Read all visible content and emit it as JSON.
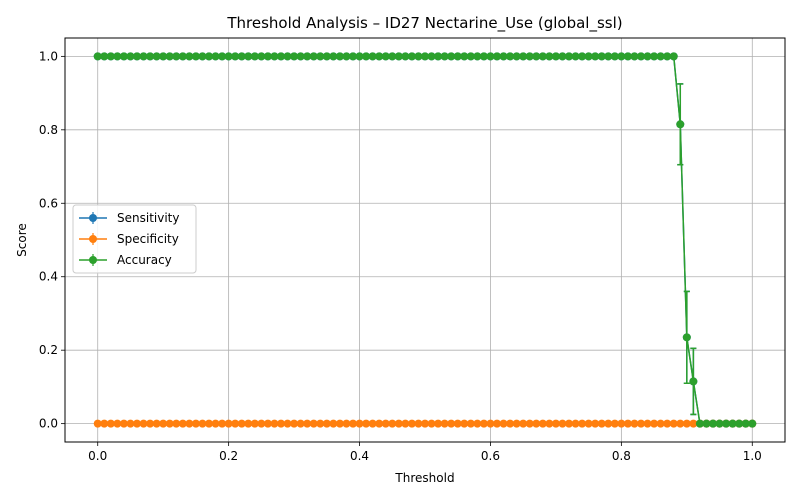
{
  "chart_data": {
    "type": "line",
    "title": "Threshold Analysis – ID27 Nectarine_Use (global_ssl)",
    "xlabel": "Threshold",
    "ylabel": "Score",
    "xlim": [
      -0.05,
      1.05
    ],
    "ylim": [
      -0.05,
      1.05
    ],
    "xticks": [
      0.0,
      0.2,
      0.4,
      0.6,
      0.8,
      1.0
    ],
    "xtick_labels": [
      "0.0",
      "0.2",
      "0.4",
      "0.6",
      "0.8",
      "1.0"
    ],
    "yticks": [
      0.0,
      0.2,
      0.4,
      0.6,
      0.8,
      1.0
    ],
    "ytick_labels": [
      "0.0",
      "0.2",
      "0.4",
      "0.6",
      "0.8",
      "1.0"
    ],
    "grid": true,
    "legend_position": "center-left",
    "x": [
      0.0,
      0.01,
      0.02,
      0.03,
      0.04,
      0.05,
      0.06,
      0.07,
      0.08,
      0.09,
      0.1,
      0.11,
      0.12,
      0.13,
      0.14,
      0.15,
      0.16,
      0.17,
      0.18,
      0.19,
      0.2,
      0.21,
      0.22,
      0.23,
      0.24,
      0.25,
      0.26,
      0.27,
      0.28,
      0.29,
      0.3,
      0.31,
      0.32,
      0.33,
      0.34,
      0.35,
      0.36,
      0.37,
      0.38,
      0.39,
      0.4,
      0.41,
      0.42,
      0.43,
      0.44,
      0.45,
      0.46,
      0.47,
      0.48,
      0.49,
      0.5,
      0.51,
      0.52,
      0.53,
      0.54,
      0.55,
      0.56,
      0.57,
      0.58,
      0.59,
      0.6,
      0.61,
      0.62,
      0.63,
      0.64,
      0.65,
      0.66,
      0.67,
      0.68,
      0.69,
      0.7,
      0.71,
      0.72,
      0.73,
      0.74,
      0.75,
      0.76,
      0.77,
      0.78,
      0.79,
      0.8,
      0.81,
      0.82,
      0.83,
      0.84,
      0.85,
      0.86,
      0.87,
      0.88,
      0.89,
      0.9,
      0.91,
      0.92,
      0.93,
      0.94,
      0.95,
      0.96,
      0.97,
      0.98,
      0.99,
      1.0
    ],
    "series": [
      {
        "name": "Sensitivity",
        "color": "#1f77b4",
        "values": [
          1,
          1,
          1,
          1,
          1,
          1,
          1,
          1,
          1,
          1,
          1,
          1,
          1,
          1,
          1,
          1,
          1,
          1,
          1,
          1,
          1,
          1,
          1,
          1,
          1,
          1,
          1,
          1,
          1,
          1,
          1,
          1,
          1,
          1,
          1,
          1,
          1,
          1,
          1,
          1,
          1,
          1,
          1,
          1,
          1,
          1,
          1,
          1,
          1,
          1,
          1,
          1,
          1,
          1,
          1,
          1,
          1,
          1,
          1,
          1,
          1,
          1,
          1,
          1,
          1,
          1,
          1,
          1,
          1,
          1,
          1,
          1,
          1,
          1,
          1,
          1,
          1,
          1,
          1,
          1,
          1,
          1,
          1,
          1,
          1,
          1,
          1,
          1,
          1,
          0.815,
          0.235,
          0.115,
          0,
          0,
          0,
          0,
          0,
          0,
          0,
          0,
          0
        ],
        "errors": [
          0,
          0,
          0,
          0,
          0,
          0,
          0,
          0,
          0,
          0,
          0,
          0,
          0,
          0,
          0,
          0,
          0,
          0,
          0,
          0,
          0,
          0,
          0,
          0,
          0,
          0,
          0,
          0,
          0,
          0,
          0,
          0,
          0,
          0,
          0,
          0,
          0,
          0,
          0,
          0,
          0,
          0,
          0,
          0,
          0,
          0,
          0,
          0,
          0,
          0,
          0,
          0,
          0,
          0,
          0,
          0,
          0,
          0,
          0,
          0,
          0,
          0,
          0,
          0,
          0,
          0,
          0,
          0,
          0,
          0,
          0,
          0,
          0,
          0,
          0,
          0,
          0,
          0,
          0,
          0,
          0,
          0,
          0,
          0,
          0,
          0,
          0,
          0,
          0,
          0.11,
          0.125,
          0.09,
          0,
          0,
          0,
          0,
          0,
          0,
          0,
          0,
          0
        ]
      },
      {
        "name": "Specificity",
        "color": "#ff7f0e",
        "values": [
          0,
          0,
          0,
          0,
          0,
          0,
          0,
          0,
          0,
          0,
          0,
          0,
          0,
          0,
          0,
          0,
          0,
          0,
          0,
          0,
          0,
          0,
          0,
          0,
          0,
          0,
          0,
          0,
          0,
          0,
          0,
          0,
          0,
          0,
          0,
          0,
          0,
          0,
          0,
          0,
          0,
          0,
          0,
          0,
          0,
          0,
          0,
          0,
          0,
          0,
          0,
          0,
          0,
          0,
          0,
          0,
          0,
          0,
          0,
          0,
          0,
          0,
          0,
          0,
          0,
          0,
          0,
          0,
          0,
          0,
          0,
          0,
          0,
          0,
          0,
          0,
          0,
          0,
          0,
          0,
          0,
          0,
          0,
          0,
          0,
          0,
          0,
          0,
          0,
          0,
          0,
          0,
          0,
          0,
          0,
          0,
          0,
          0,
          0,
          0,
          0
        ],
        "errors": [
          0,
          0,
          0,
          0,
          0,
          0,
          0,
          0,
          0,
          0,
          0,
          0,
          0,
          0,
          0,
          0,
          0,
          0,
          0,
          0,
          0,
          0,
          0,
          0,
          0,
          0,
          0,
          0,
          0,
          0,
          0,
          0,
          0,
          0,
          0,
          0,
          0,
          0,
          0,
          0,
          0,
          0,
          0,
          0,
          0,
          0,
          0,
          0,
          0,
          0,
          0,
          0,
          0,
          0,
          0,
          0,
          0,
          0,
          0,
          0,
          0,
          0,
          0,
          0,
          0,
          0,
          0,
          0,
          0,
          0,
          0,
          0,
          0,
          0,
          0,
          0,
          0,
          0,
          0,
          0,
          0,
          0,
          0,
          0,
          0,
          0,
          0,
          0,
          0,
          0,
          0,
          0,
          0,
          0,
          0,
          0,
          0,
          0,
          0,
          0,
          0
        ]
      },
      {
        "name": "Accuracy",
        "color": "#2ca02c",
        "values": [
          1,
          1,
          1,
          1,
          1,
          1,
          1,
          1,
          1,
          1,
          1,
          1,
          1,
          1,
          1,
          1,
          1,
          1,
          1,
          1,
          1,
          1,
          1,
          1,
          1,
          1,
          1,
          1,
          1,
          1,
          1,
          1,
          1,
          1,
          1,
          1,
          1,
          1,
          1,
          1,
          1,
          1,
          1,
          1,
          1,
          1,
          1,
          1,
          1,
          1,
          1,
          1,
          1,
          1,
          1,
          1,
          1,
          1,
          1,
          1,
          1,
          1,
          1,
          1,
          1,
          1,
          1,
          1,
          1,
          1,
          1,
          1,
          1,
          1,
          1,
          1,
          1,
          1,
          1,
          1,
          1,
          1,
          1,
          1,
          1,
          1,
          1,
          1,
          1,
          0.815,
          0.235,
          0.115,
          0,
          0,
          0,
          0,
          0,
          0,
          0,
          0,
          0
        ],
        "errors": [
          0,
          0,
          0,
          0,
          0,
          0,
          0,
          0,
          0,
          0,
          0,
          0,
          0,
          0,
          0,
          0,
          0,
          0,
          0,
          0,
          0,
          0,
          0,
          0,
          0,
          0,
          0,
          0,
          0,
          0,
          0,
          0,
          0,
          0,
          0,
          0,
          0,
          0,
          0,
          0,
          0,
          0,
          0,
          0,
          0,
          0,
          0,
          0,
          0,
          0,
          0,
          0,
          0,
          0,
          0,
          0,
          0,
          0,
          0,
          0,
          0,
          0,
          0,
          0,
          0,
          0,
          0,
          0,
          0,
          0,
          0,
          0,
          0,
          0,
          0,
          0,
          0,
          0,
          0,
          0,
          0,
          0,
          0,
          0,
          0,
          0,
          0,
          0,
          0,
          0.11,
          0.125,
          0.09,
          0,
          0,
          0,
          0,
          0,
          0,
          0,
          0,
          0
        ]
      }
    ]
  }
}
